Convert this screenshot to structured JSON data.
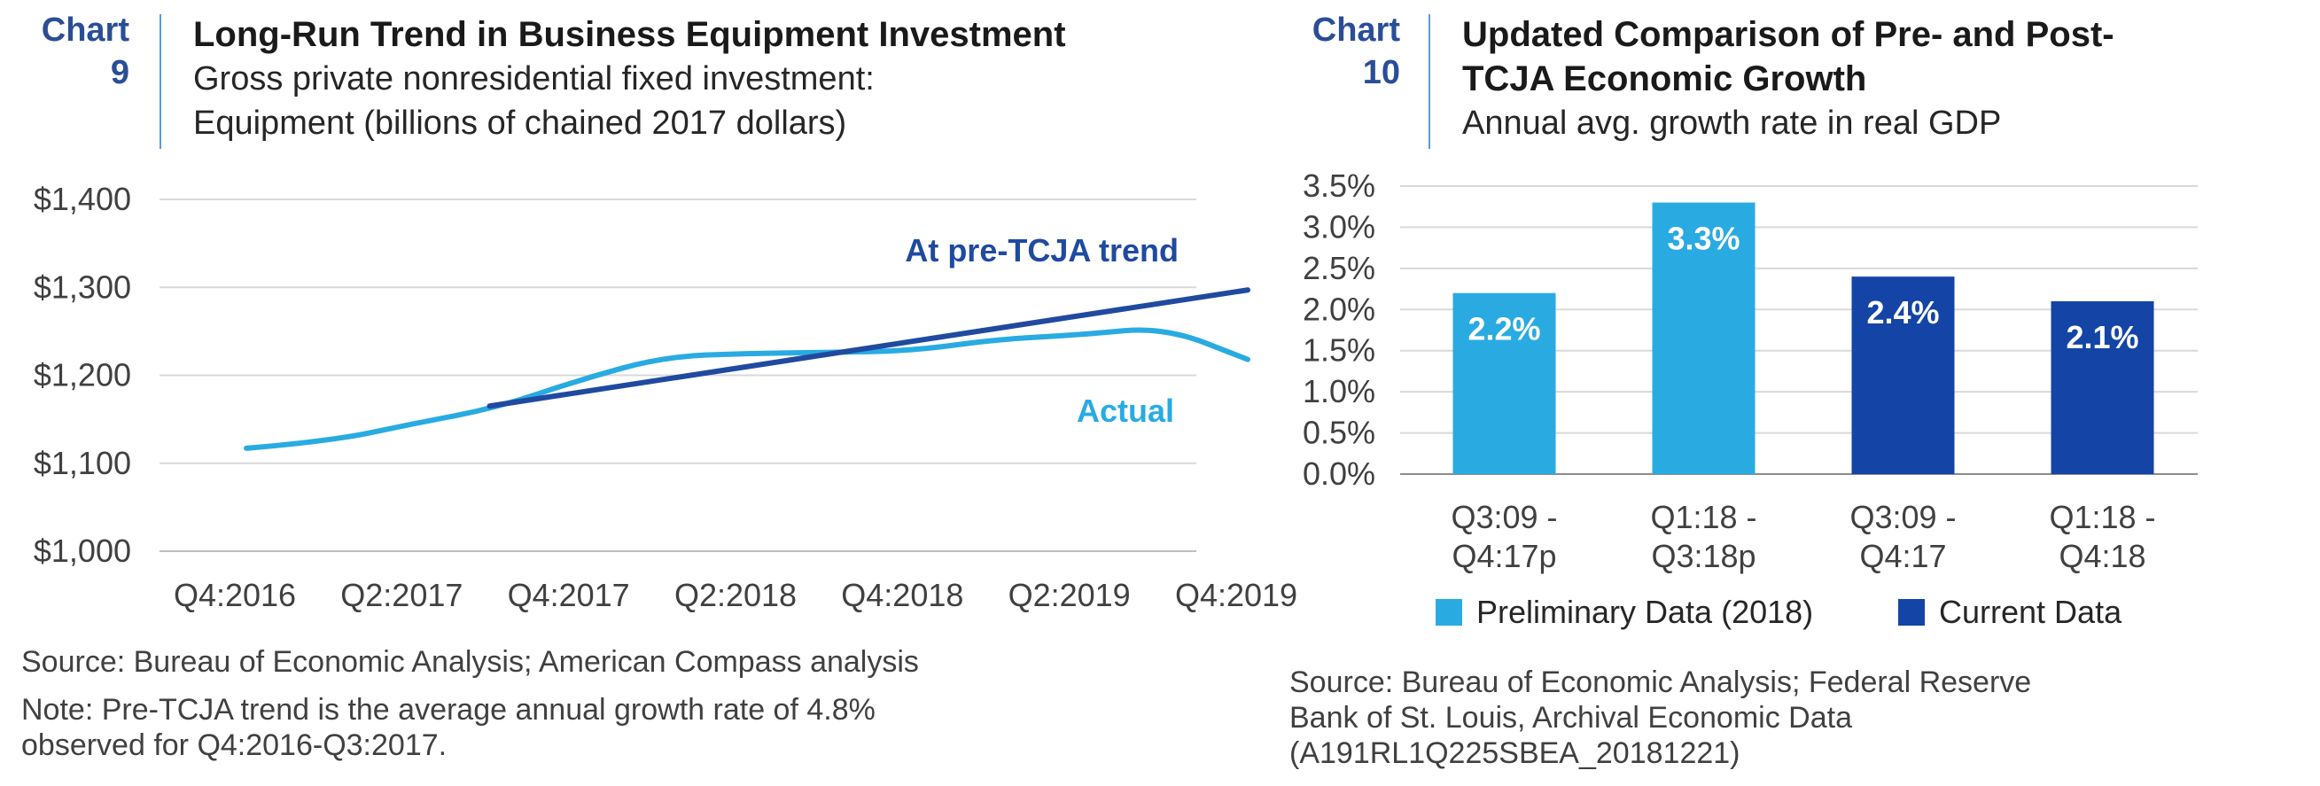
{
  "colors": {
    "navy": "#2a4e96",
    "light_blue": "#29abe2",
    "dark_blue": "#1344a6",
    "trend_blue": "#1f4aa0",
    "grid": "#d9d9d9",
    "divider": "#5b9bd5"
  },
  "left": {
    "number_word": "Chart",
    "number": "9",
    "title": "Long-Run Trend in Business Equipment Investment",
    "subtitle_line1": "Gross private nonresidential fixed investment:",
    "subtitle_line2": "Equipment (billions of chained 2017 dollars)",
    "source": "Source: Bureau of Economic Analysis; American Compass analysis",
    "note_line1": "Note: Pre-TCJA trend is the average annual growth rate of 4.8%",
    "note_line2": "observed for Q4:2016-Q3:2017."
  },
  "right": {
    "number_word": "Chart",
    "number": "10",
    "title_line1": "Updated Comparison of Pre- and Post-",
    "title_line2": "TCJA Economic Growth",
    "subtitle": "Annual avg. growth rate in real GDP",
    "source_line1": "Source: Bureau of Economic Analysis; Federal Reserve",
    "source_line2": "Bank of St. Louis, Archival Economic Data",
    "source_line3": "(A191RL1Q225SBEA_20181221)"
  },
  "chart_data": [
    {
      "type": "line",
      "ylim": [
        1000,
        1400
      ],
      "y_ticks": [
        1000,
        1100,
        1200,
        1300,
        1400
      ],
      "y_tick_labels": [
        "$1,000",
        "$1,100",
        "$1,200",
        "$1,300",
        "$1,400"
      ],
      "x_range": [
        2016.75,
        2019.75
      ],
      "x_ticks": [
        2016.75,
        2017.25,
        2017.75,
        2018.25,
        2018.75,
        2019.25,
        2019.75
      ],
      "x_tick_labels": [
        "Q4:2016",
        "Q2:2017",
        "Q4:2017",
        "Q2:2018",
        "Q4:2018",
        "Q2:2019",
        "Q4:2019"
      ],
      "grid": true,
      "series": [
        {
          "name": "Actual",
          "color": "#29abe2",
          "x": [
            2016.75,
            2017.0,
            2017.25,
            2017.5,
            2017.75,
            2018.0,
            2018.25,
            2018.5,
            2018.75,
            2019.0,
            2019.25,
            2019.5,
            2019.75
          ],
          "y": [
            1117,
            1125,
            1145,
            1163,
            1195,
            1221,
            1225,
            1226,
            1228,
            1241,
            1246,
            1255,
            1218
          ]
        },
        {
          "name": "At pre-TCJA trend",
          "color": "#1f4aa0",
          "x": [
            2017.5,
            2019.75
          ],
          "y": [
            1165,
            1297
          ]
        }
      ]
    },
    {
      "type": "bar",
      "categories": [
        [
          "Q3:09 -",
          "Q4:17p"
        ],
        [
          "Q1:18 -",
          "Q3:18p"
        ],
        [
          "Q3:09 -",
          "Q4:17"
        ],
        [
          "Q1:18 -",
          "Q4:18"
        ]
      ],
      "values": [
        2.2,
        3.3,
        2.4,
        2.1
      ],
      "value_labels": [
        "2.2%",
        "3.3%",
        "2.4%",
        "2.1%"
      ],
      "bar_series": [
        "Preliminary Data (2018)",
        "Preliminary Data (2018)",
        "Current Data",
        "Current Data"
      ],
      "ylim": [
        0,
        3.5
      ],
      "y_ticks": [
        0,
        0.5,
        1,
        1.5,
        2,
        2.5,
        3,
        3.5
      ],
      "y_tick_labels": [
        "0.0%",
        "0.5%",
        "1.0%",
        "1.5%",
        "2.0%",
        "2.5%",
        "3.0%",
        "3.5%"
      ],
      "grid": true,
      "legend": [
        {
          "name": "Preliminary Data (2018)",
          "color": "#29abe2"
        },
        {
          "name": "Current Data",
          "color": "#1344a6"
        }
      ],
      "legend_placement": "bottom"
    }
  ]
}
